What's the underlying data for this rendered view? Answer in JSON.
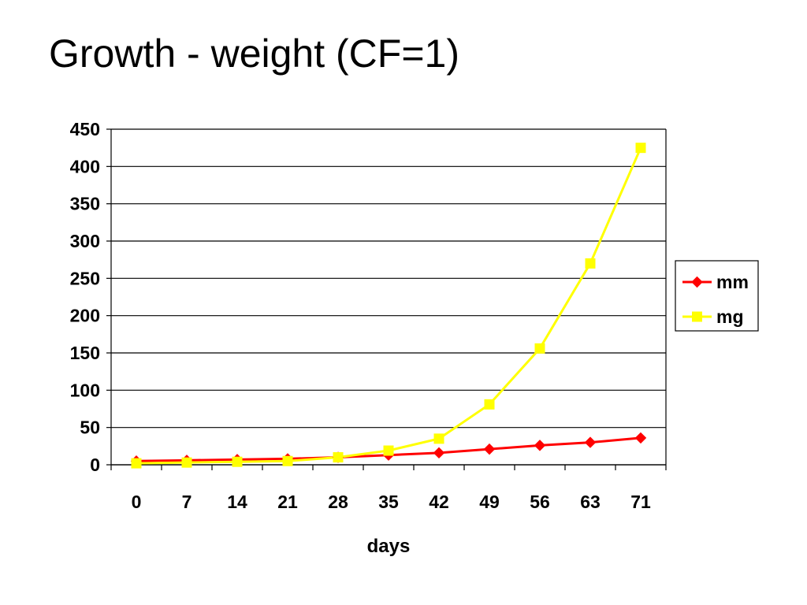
{
  "slide": {
    "title": "Growth - weight (CF=1)"
  },
  "chart_data": {
    "type": "line",
    "title": "",
    "xlabel": "days",
    "ylabel": "",
    "categories": [
      "0",
      "7",
      "14",
      "21",
      "28",
      "35",
      "42",
      "49",
      "56",
      "63",
      "71"
    ],
    "ylim": [
      0,
      450
    ],
    "yticks": [
      0,
      50,
      100,
      150,
      200,
      250,
      300,
      350,
      400,
      450
    ],
    "grid": "horizontal",
    "legend_position": "right",
    "series": [
      {
        "name": "mm",
        "marker": "diamond",
        "color": "#ff0000",
        "values": [
          5,
          6,
          7,
          8,
          10,
          13,
          16,
          21,
          26,
          30,
          36
        ]
      },
      {
        "name": "mg",
        "marker": "square",
        "color": "#ffff00",
        "values": [
          2,
          3,
          4,
          5,
          10,
          19,
          35,
          81,
          156,
          270,
          425
        ]
      }
    ]
  }
}
